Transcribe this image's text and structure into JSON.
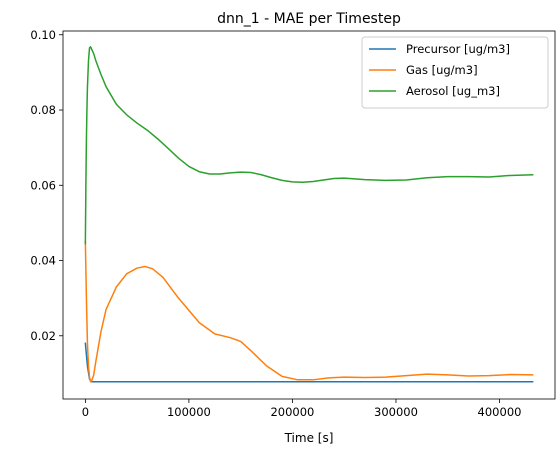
{
  "chart_data": {
    "type": "line",
    "title": "dnn_1 - MAE per Timestep",
    "xlabel": "Time [s]",
    "ylabel": "",
    "xlim": [
      -21600,
      453600
    ],
    "ylim": [
      0.0032,
      0.101
    ],
    "x_ticks": [
      0,
      100000,
      200000,
      300000,
      400000
    ],
    "x_tick_labels": [
      "0",
      "100000",
      "200000",
      "300000",
      "400000"
    ],
    "y_ticks": [
      0.02,
      0.04,
      0.06,
      0.08,
      0.1
    ],
    "y_tick_labels": [
      "0.02",
      "0.04",
      "0.06",
      "0.08",
      "0.10"
    ],
    "grid": false,
    "legend_position": "top-right",
    "series": [
      {
        "name": "Precursor [ug/m3]",
        "color": "#1f77b4",
        "x": [
          0,
          2000,
          4000,
          6000,
          10000,
          50000,
          100000,
          200000,
          300000,
          400000,
          432000
        ],
        "y": [
          0.018,
          0.012,
          0.0085,
          0.0078,
          0.0078,
          0.0078,
          0.0078,
          0.0078,
          0.0078,
          0.0078,
          0.0078
        ]
      },
      {
        "name": "Gas [ug/m3]",
        "color": "#ff7f0e",
        "x": [
          0,
          1000,
          2000,
          3000,
          4000,
          5000,
          6000,
          8000,
          10000,
          15000,
          20000,
          30000,
          40000,
          50000,
          58000,
          65000,
          75000,
          90000,
          110000,
          125000,
          140000,
          150000,
          160000,
          175000,
          190000,
          205000,
          220000,
          235000,
          250000,
          270000,
          290000,
          310000,
          330000,
          350000,
          370000,
          390000,
          410000,
          432000
        ],
        "y": [
          0.045,
          0.03,
          0.018,
          0.012,
          0.009,
          0.0078,
          0.008,
          0.0095,
          0.013,
          0.021,
          0.027,
          0.033,
          0.0365,
          0.038,
          0.0384,
          0.0378,
          0.0355,
          0.03,
          0.0235,
          0.0205,
          0.0195,
          0.0185,
          0.016,
          0.012,
          0.0092,
          0.0083,
          0.0083,
          0.0088,
          0.009,
          0.0089,
          0.009,
          0.0094,
          0.0098,
          0.0096,
          0.0093,
          0.0094,
          0.0097,
          0.0096
        ]
      },
      {
        "name": "Aerosol [ug_m3]",
        "color": "#2ca02c",
        "x": [
          0,
          500,
          1000,
          1500,
          2000,
          3000,
          4000,
          5000,
          6000,
          8000,
          10000,
          15000,
          20000,
          30000,
          40000,
          50000,
          60000,
          70000,
          80000,
          90000,
          100000,
          110000,
          120000,
          130000,
          140000,
          150000,
          160000,
          170000,
          180000,
          190000,
          200000,
          210000,
          220000,
          230000,
          240000,
          250000,
          270000,
          290000,
          310000,
          330000,
          350000,
          370000,
          390000,
          410000,
          432000
        ],
        "y": [
          0.0445,
          0.06,
          0.072,
          0.08,
          0.086,
          0.093,
          0.0965,
          0.0968,
          0.0962,
          0.095,
          0.0932,
          0.0895,
          0.0862,
          0.0815,
          0.0787,
          0.0765,
          0.0746,
          0.0723,
          0.0698,
          0.0672,
          0.065,
          0.0636,
          0.063,
          0.063,
          0.0633,
          0.0635,
          0.0634,
          0.0628,
          0.062,
          0.0613,
          0.0609,
          0.0608,
          0.061,
          0.0614,
          0.0618,
          0.0619,
          0.0615,
          0.0613,
          0.0614,
          0.062,
          0.0623,
          0.0623,
          0.0622,
          0.0626,
          0.0628
        ]
      }
    ]
  }
}
